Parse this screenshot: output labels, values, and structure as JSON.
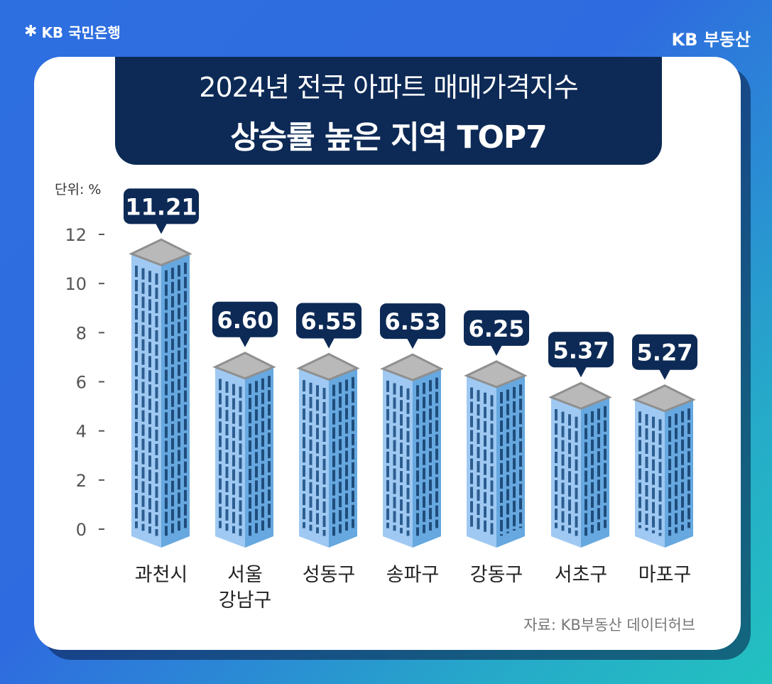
{
  "brand": {
    "bank": "KB 국민은행",
    "service": "KB 부동산"
  },
  "colors": {
    "navy": "#0d2a56",
    "building_front": "#9fc9f2",
    "building_side": "#66a8df",
    "roof": "#b9b9b9",
    "window": "#2c5d90"
  },
  "chart_data": {
    "type": "bar",
    "title": "2024년 전국 아파트 매매가격지수",
    "subtitle": "상승률 높은 지역 TOP7",
    "unit_label": "단위: %",
    "source": "자료: KB부동산 데이터허브",
    "categories": [
      [
        "과천시"
      ],
      [
        "서울",
        "강남구"
      ],
      [
        "성동구"
      ],
      [
        "송파구"
      ],
      [
        "강동구"
      ],
      [
        "서초구"
      ],
      [
        "마포구"
      ]
    ],
    "values": [
      11.21,
      6.6,
      6.55,
      6.53,
      6.25,
      5.37,
      5.27
    ],
    "value_labels": [
      "11.21",
      "6.60",
      "6.55",
      "6.53",
      "6.25",
      "5.37",
      "5.27"
    ],
    "yticks": [
      "12",
      "10",
      "8",
      "6",
      "4",
      "2",
      "0"
    ],
    "ylim": [
      0,
      12
    ]
  }
}
